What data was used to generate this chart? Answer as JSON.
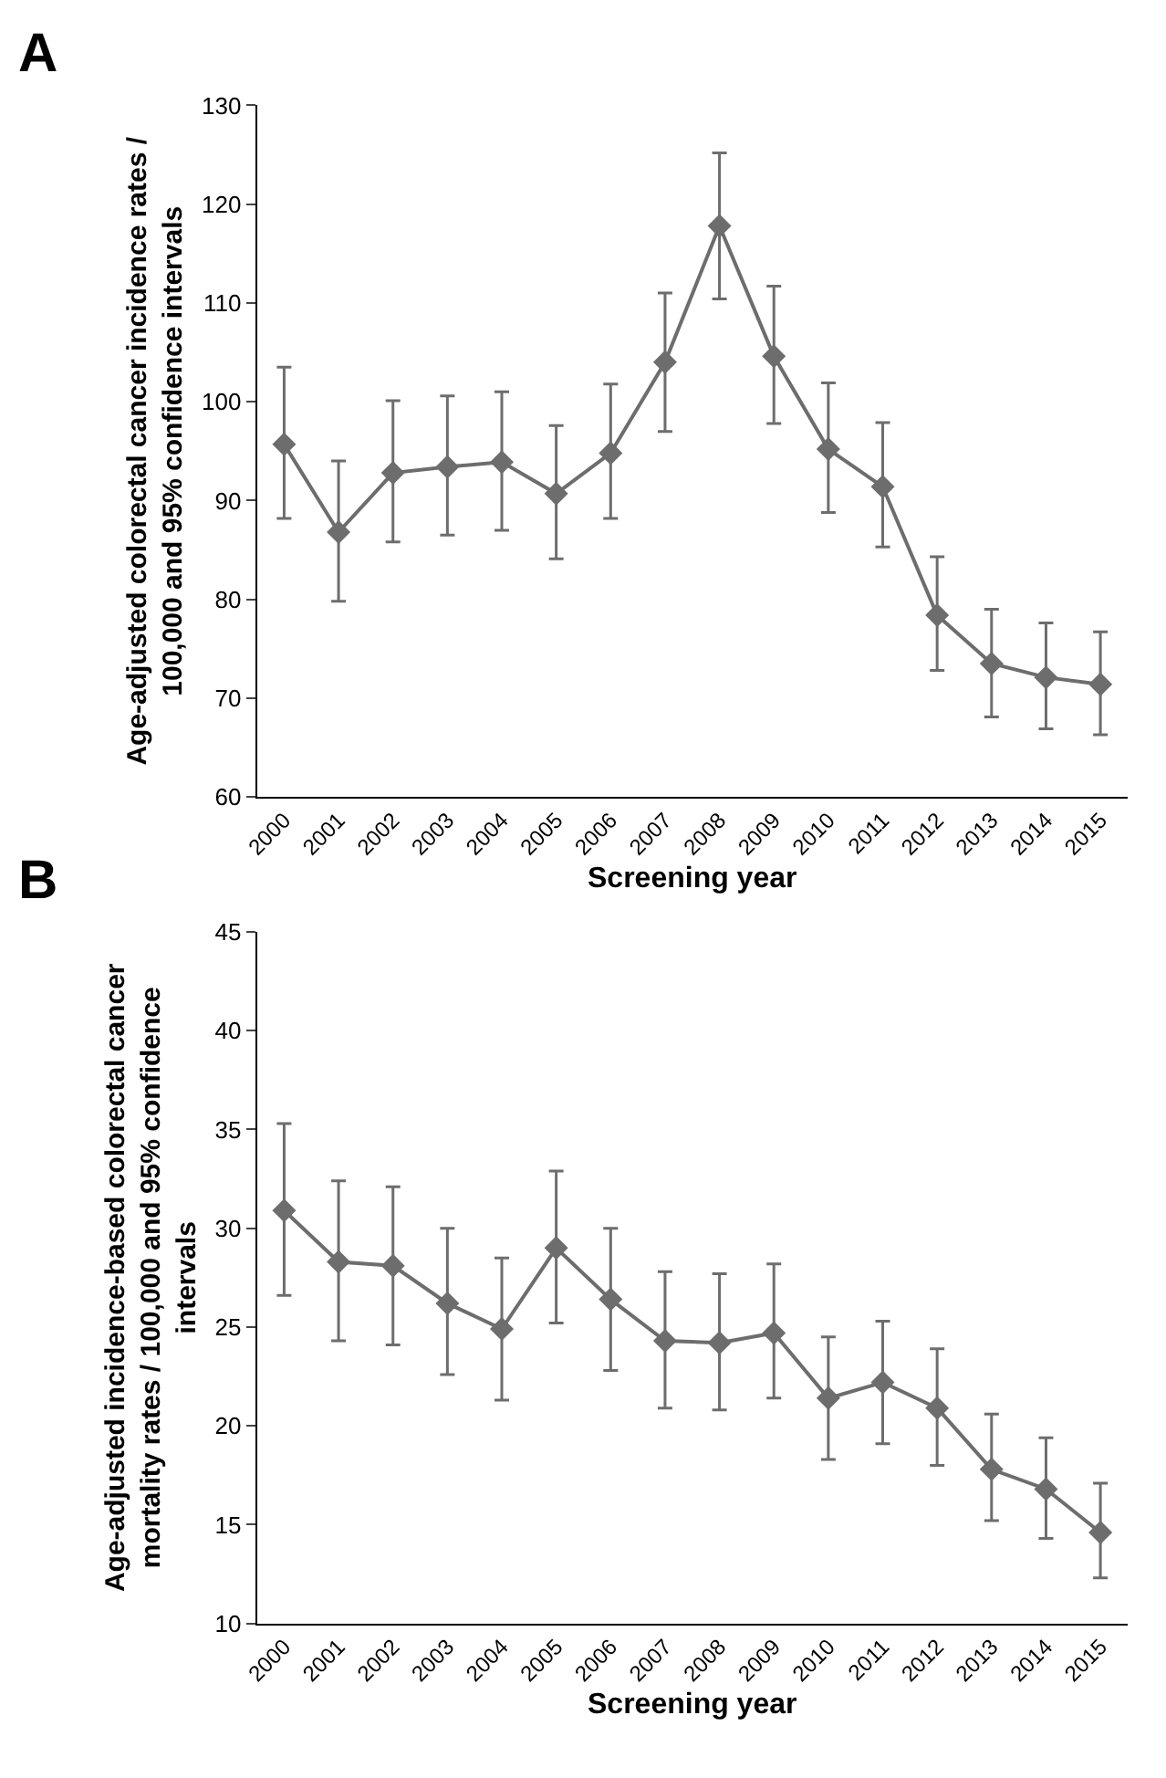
{
  "chart_data": [
    {
      "type": "line",
      "title": "A",
      "xlabel": "Screening year",
      "ylabel": "Age-adjusted colorectal cancer incidence rates / 100,000 and 95% confidence intervals",
      "categories": [
        "2000",
        "2001",
        "2002",
        "2003",
        "2004",
        "2005",
        "2006",
        "2007",
        "2008",
        "2009",
        "2010",
        "2011",
        "2012",
        "2013",
        "2014",
        "2015"
      ],
      "series": [
        {
          "color": "#6d6d6d",
          "values": [
            95.7,
            86.8,
            92.8,
            93.4,
            93.9,
            90.7,
            94.8,
            104,
            117.8,
            104.6,
            95.2,
            91.4,
            78.4,
            73.5,
            72.1,
            71.4
          ],
          "errors": [
            [
              88.2,
              103.5
            ],
            [
              79.8,
              94
            ],
            [
              85.8,
              100.1
            ],
            [
              86.5,
              100.6
            ],
            [
              87,
              101
            ],
            [
              84.1,
              97.6
            ],
            [
              88.2,
              101.8
            ],
            [
              97,
              111
            ],
            [
              110.4,
              125.2
            ],
            [
              97.8,
              111.7
            ],
            [
              88.8,
              101.9
            ],
            [
              85.3,
              97.9
            ],
            [
              72.8,
              84.3
            ],
            [
              68.1,
              79
            ],
            [
              66.9,
              77.6
            ],
            [
              66.3,
              76.7
            ]
          ]
        }
      ],
      "ylim": [
        60,
        130
      ],
      "yticks": [
        60,
        70,
        80,
        90,
        100,
        110,
        120,
        130
      ],
      "marker": "diamond",
      "line_style": "solid"
    },
    {
      "type": "line",
      "title": "B",
      "xlabel": "Screening year",
      "ylabel": "Age-adjusted incidence-based colorectal cancer mortality rates / 100,000 and 95% confidence intervals",
      "categories": [
        "2000",
        "2001",
        "2002",
        "2003",
        "2004",
        "2005",
        "2006",
        "2007",
        "2008",
        "2009",
        "2010",
        "2011",
        "2012",
        "2013",
        "2014",
        "2015"
      ],
      "series": [
        {
          "color": "#6d6d6d",
          "values": [
            30.9,
            28.3,
            28.1,
            26.2,
            24.9,
            29,
            26.4,
            24.3,
            24.2,
            24.7,
            21.4,
            22.2,
            20.9,
            17.8,
            16.8,
            14.6
          ],
          "errors": [
            [
              26.6,
              35.3
            ],
            [
              24.3,
              32.4
            ],
            [
              24.1,
              32.1
            ],
            [
              22.6,
              30
            ],
            [
              21.3,
              28.5
            ],
            [
              25.2,
              32.9
            ],
            [
              22.8,
              30
            ],
            [
              20.9,
              27.8
            ],
            [
              20.8,
              27.7
            ],
            [
              21.4,
              28.2
            ],
            [
              18.3,
              24.5
            ],
            [
              19.1,
              25.3
            ],
            [
              18,
              23.9
            ],
            [
              15.2,
              20.6
            ],
            [
              14.3,
              19.4
            ],
            [
              12.3,
              17.1
            ]
          ]
        }
      ],
      "ylim": [
        10,
        45
      ],
      "yticks": [
        10,
        15,
        20,
        25,
        30,
        35,
        40,
        45
      ],
      "marker": "diamond",
      "line_style": "solid"
    }
  ]
}
